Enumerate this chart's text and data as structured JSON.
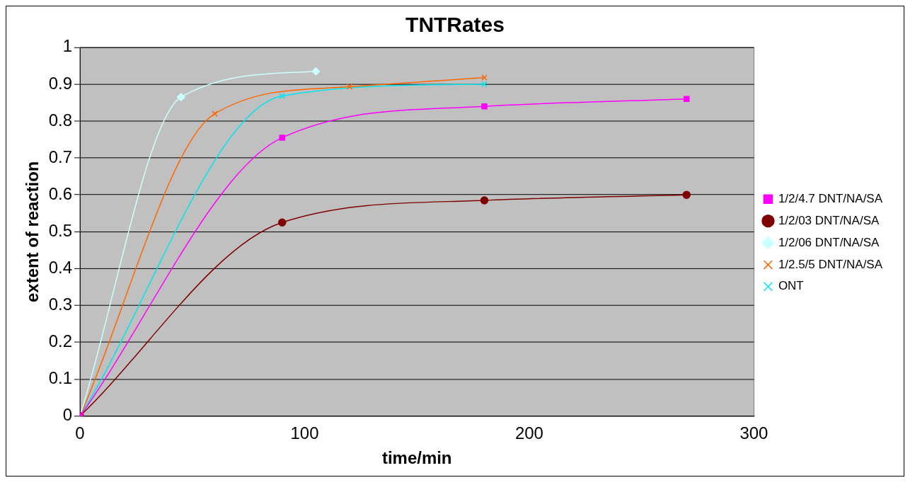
{
  "chart_data": {
    "type": "line",
    "title": "TNTRates",
    "xlabel": "time/min",
    "ylabel": "extent of reaction",
    "xlim": [
      0,
      300
    ],
    "xticks": [
      0,
      100,
      200,
      300
    ],
    "ylim": [
      0,
      1
    ],
    "yticks": [
      0,
      0.1,
      0.2,
      0.3,
      0.4,
      0.5,
      0.6,
      0.7,
      0.8,
      0.9,
      1
    ],
    "grid": "y",
    "legend": "right",
    "series": [
      {
        "name": "1/2/4.7 DNT/NA/SA",
        "color": "#ff00ff",
        "marker": "square",
        "x": [
          0,
          90,
          180,
          270
        ],
        "values": [
          0,
          0.755,
          0.84,
          0.86
        ]
      },
      {
        "name": "1/2/03 DNT/NA/SA",
        "color": "#800000",
        "marker": "circle",
        "x": [
          0,
          90,
          180,
          270
        ],
        "values": [
          0,
          0.525,
          0.585,
          0.6
        ]
      },
      {
        "name": "1/2/06 DNT/NA/SA",
        "color": "#ccffff",
        "marker": "diamond",
        "x": [
          0,
          45,
          105
        ],
        "values": [
          0,
          0.865,
          0.935
        ]
      },
      {
        "name": "1/2.5/5 DNT/NA/SA",
        "color": "#ff6600",
        "marker": "cross",
        "x": [
          0,
          60,
          120,
          180
        ],
        "values": [
          0,
          0.82,
          0.893,
          0.918
        ]
      },
      {
        "name": "ONT",
        "color": "#00e5ee",
        "marker": "cross",
        "x": [
          0,
          90,
          180
        ],
        "values": [
          0,
          0.868,
          0.9
        ]
      }
    ]
  }
}
